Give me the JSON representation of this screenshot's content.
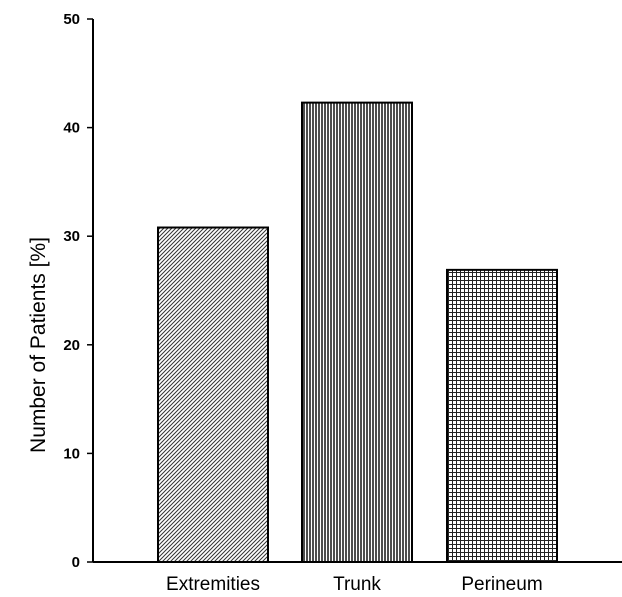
{
  "chart_data": {
    "type": "bar",
    "categories": [
      "Extremities",
      "Trunk",
      "Perineum"
    ],
    "values": [
      30.8,
      42.3,
      26.9
    ],
    "ylabel": "Number of Patients [%]",
    "xlabel": "",
    "ylim": [
      0,
      50
    ],
    "yticks": [
      0,
      10,
      20,
      30,
      40,
      50
    ],
    "grid": false,
    "legend": "none",
    "bar_patterns": [
      "diagonal-hatch",
      "vertical-lines",
      "crosshatch"
    ]
  }
}
